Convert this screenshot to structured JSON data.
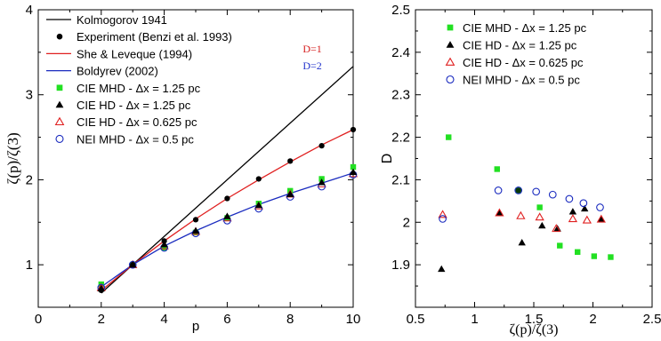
{
  "chart_data": [
    {
      "type": "scatter",
      "panel": "left",
      "xlabel": "p",
      "ylabel": "ζ(p)/ζ(3)",
      "xlim": [
        0,
        10
      ],
      "ylim": [
        0.5,
        4
      ],
      "xticks": [
        0,
        2,
        4,
        6,
        8,
        10
      ],
      "yticks": [
        1,
        2,
        3,
        4
      ],
      "grid": false,
      "legend_position": "top-left",
      "annotations": [
        {
          "text": "D=1",
          "color": "#d62020",
          "x": 8.4,
          "y": 3.5
        },
        {
          "text": "D=2",
          "color": "#2233cc",
          "x": 8.4,
          "y": 3.3
        }
      ],
      "series": [
        {
          "name": "Kolmogorov 1941",
          "kind": "line",
          "color": "#000000",
          "x": [
            2,
            10
          ],
          "y": [
            0.667,
            3.333
          ]
        },
        {
          "name": "Experiment (Benzi et al. 1993)",
          "kind": "marker",
          "marker": "filled-circle",
          "color": "#000000",
          "x": [
            2,
            3,
            4,
            5,
            6,
            7,
            8,
            9,
            10
          ],
          "y": [
            0.7,
            1.0,
            1.28,
            1.53,
            1.78,
            2.01,
            2.22,
            2.4,
            2.59
          ]
        },
        {
          "name": "She & Leveque (1994)",
          "kind": "line",
          "color": "#e02020",
          "x": [
            2,
            3,
            4,
            5,
            6,
            7,
            8,
            9,
            10
          ],
          "y": [
            0.696,
            1.0,
            1.28,
            1.54,
            1.78,
            2.0,
            2.21,
            2.41,
            2.59
          ]
        },
        {
          "name": "Boldyrev (2002)",
          "kind": "line",
          "color": "#1a2bbf",
          "x": [
            2,
            3,
            4,
            5,
            6,
            7,
            8,
            9,
            10
          ],
          "y": [
            0.74,
            1.0,
            1.22,
            1.4,
            1.56,
            1.71,
            1.84,
            1.96,
            2.08
          ]
        },
        {
          "name": "CIE MHD - Δx = 1.25 pc",
          "kind": "marker",
          "marker": "filled-square",
          "color": "#22e022",
          "x": [
            2,
            3,
            4,
            5,
            6,
            7,
            8,
            9,
            10
          ],
          "y": [
            0.77,
            1.0,
            1.2,
            1.38,
            1.55,
            1.72,
            1.87,
            2.01,
            2.15
          ]
        },
        {
          "name": "CIE HD - Δx = 1.25 pc",
          "kind": "marker",
          "marker": "filled-triangle",
          "color": "#000000",
          "x": [
            2,
            3,
            4,
            5,
            6,
            7,
            8,
            9,
            10
          ],
          "y": [
            0.72,
            1.0,
            1.24,
            1.4,
            1.57,
            1.7,
            1.83,
            1.97,
            2.09
          ]
        },
        {
          "name": "CIE HD - Δx = 0.625 pc",
          "kind": "marker",
          "marker": "open-triangle",
          "color": "#e02020",
          "x": [
            2,
            3,
            4,
            5,
            6,
            7,
            8,
            9,
            10
          ],
          "y": [
            0.73,
            1.0,
            1.22,
            1.39,
            1.55,
            1.69,
            1.83,
            1.95,
            2.07
          ]
        },
        {
          "name": "NEI MHD - Δx = 0.5 pc",
          "kind": "marker",
          "marker": "open-circle",
          "color": "#1a2bbf",
          "x": [
            2,
            3,
            4,
            5,
            6,
            7,
            8,
            9,
            10
          ],
          "y": [
            0.73,
            1.0,
            1.2,
            1.37,
            1.52,
            1.66,
            1.8,
            1.92,
            2.06
          ]
        }
      ]
    },
    {
      "type": "scatter",
      "panel": "right",
      "xlabel": "ζ(p)/ζ(3)",
      "ylabel": "D",
      "xlim": [
        0.5,
        2.5
      ],
      "ylim": [
        1.8,
        2.5
      ],
      "xticks": [
        0.5,
        1,
        1.5,
        2,
        2.5
      ],
      "yticks": [
        1.9,
        2,
        2.1,
        2.2,
        2.3,
        2.4,
        2.5
      ],
      "xtick_labels": [
        "0.5",
        "1",
        "1.5",
        "2",
        "2.5"
      ],
      "ytick_labels": [
        "1.9",
        "2",
        "2.1",
        "2.2",
        "2.3",
        "2.4",
        "2.5"
      ],
      "grid": false,
      "legend_position": "top-left",
      "series": [
        {
          "name": "CIE MHD - Δx = 1.25 pc",
          "marker": "filled-square",
          "color": "#22e022",
          "x": [
            0.78,
            1.19,
            1.37,
            1.55,
            1.72,
            1.87,
            2.01,
            2.15
          ],
          "y": [
            2.2,
            2.125,
            2.075,
            2.035,
            1.945,
            1.93,
            1.92,
            1.918
          ]
        },
        {
          "name": "CIE HD - Δx = 1.25 pc",
          "marker": "filled-triangle",
          "color": "#000000",
          "x": [
            0.72,
            1.21,
            1.4,
            1.57,
            1.7,
            1.83,
            1.93,
            2.07
          ],
          "y": [
            1.89,
            2.022,
            1.952,
            1.992,
            1.985,
            2.025,
            2.032,
            2.008
          ]
        },
        {
          "name": "CIE HD - Δx = 0.625 pc",
          "marker": "open-triangle",
          "color": "#e02020",
          "x": [
            0.73,
            1.21,
            1.39,
            1.55,
            1.69,
            1.83,
            1.95,
            2.07
          ],
          "y": [
            2.018,
            2.022,
            2.015,
            2.012,
            1.985,
            2.008,
            2.005,
            2.007
          ]
        },
        {
          "name": "NEI MHD - Δx = 0.5 pc",
          "marker": "open-circle",
          "color": "#1a2bbf",
          "x": [
            0.73,
            1.2,
            1.37,
            1.52,
            1.66,
            1.8,
            1.92,
            2.06
          ],
          "y": [
            2.008,
            2.075,
            2.075,
            2.072,
            2.065,
            2.055,
            2.045,
            2.035
          ]
        }
      ]
    }
  ]
}
